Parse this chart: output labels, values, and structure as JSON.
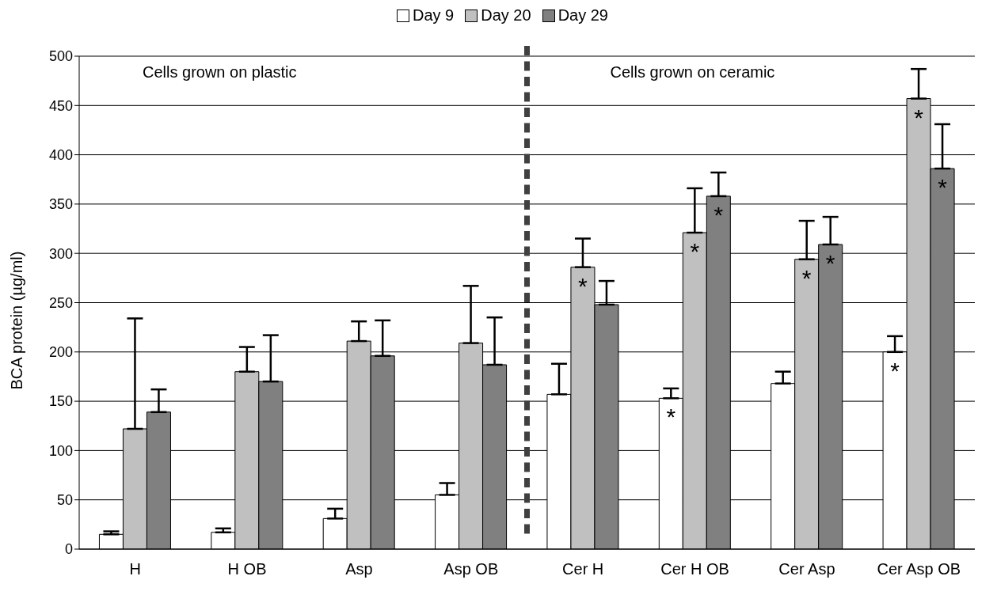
{
  "chart_data": {
    "type": "bar",
    "ylabel": "BCA protein (µg/ml)",
    "categories": [
      "H",
      "H OB",
      "Asp",
      "Asp OB",
      "Cer H",
      "Cer H OB",
      "Cer Asp",
      "Cer Asp OB"
    ],
    "series": [
      {
        "name": "Day 9",
        "color": "#ffffff",
        "values": [
          15,
          17,
          31,
          55,
          157,
          153,
          168,
          200
        ],
        "errors": [
          [
            15,
            18
          ],
          [
            17,
            21
          ],
          [
            31,
            41
          ],
          [
            55,
            67
          ],
          [
            157,
            188
          ],
          [
            153,
            163
          ],
          [
            168,
            180
          ],
          [
            200,
            216
          ]
        ],
        "value_labels": [
          null,
          null,
          null,
          null,
          null,
          "*",
          null,
          "*"
        ]
      },
      {
        "name": "Day 20",
        "color": "#c0c0c0",
        "values": [
          122,
          180,
          211,
          209,
          286,
          321,
          294,
          457
        ],
        "errors": [
          [
            122,
            234
          ],
          [
            180,
            205
          ],
          [
            211,
            231
          ],
          [
            209,
            267
          ],
          [
            286,
            315
          ],
          [
            321,
            366
          ],
          [
            294,
            333
          ],
          [
            457,
            487
          ]
        ],
        "value_labels": [
          null,
          null,
          null,
          null,
          "*",
          "*",
          "*",
          "*"
        ]
      },
      {
        "name": "Day 29",
        "color": "#808080",
        "values": [
          139,
          170,
          196,
          187,
          248,
          358,
          309,
          386
        ],
        "errors": [
          [
            139,
            162
          ],
          [
            170,
            217
          ],
          [
            196,
            232
          ],
          [
            187,
            235
          ],
          [
            248,
            272
          ],
          [
            358,
            382
          ],
          [
            309,
            337
          ],
          [
            386,
            431
          ]
        ],
        "value_labels": [
          null,
          null,
          null,
          null,
          null,
          "*",
          "*",
          "*"
        ]
      }
    ],
    "ylim": [
      0,
      500
    ],
    "yticks": [
      0,
      50,
      100,
      150,
      200,
      250,
      300,
      350,
      400,
      450,
      500
    ],
    "grid": "y",
    "legend": "top",
    "annotations": [
      "Cells grown on plastic",
      "Cells grown on ceramic"
    ]
  }
}
